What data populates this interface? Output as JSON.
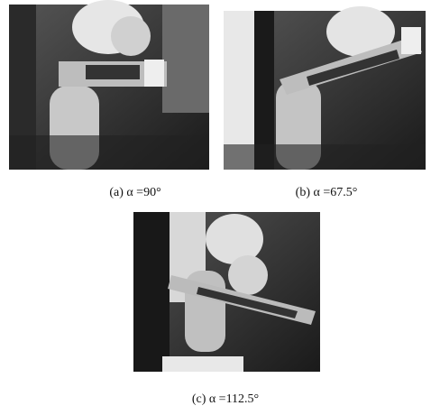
{
  "panels": [
    {
      "caption": "(a) α =90°"
    },
    {
      "caption": "(b) α =67.5°"
    },
    {
      "caption": "(c) α =112.5°"
    }
  ]
}
